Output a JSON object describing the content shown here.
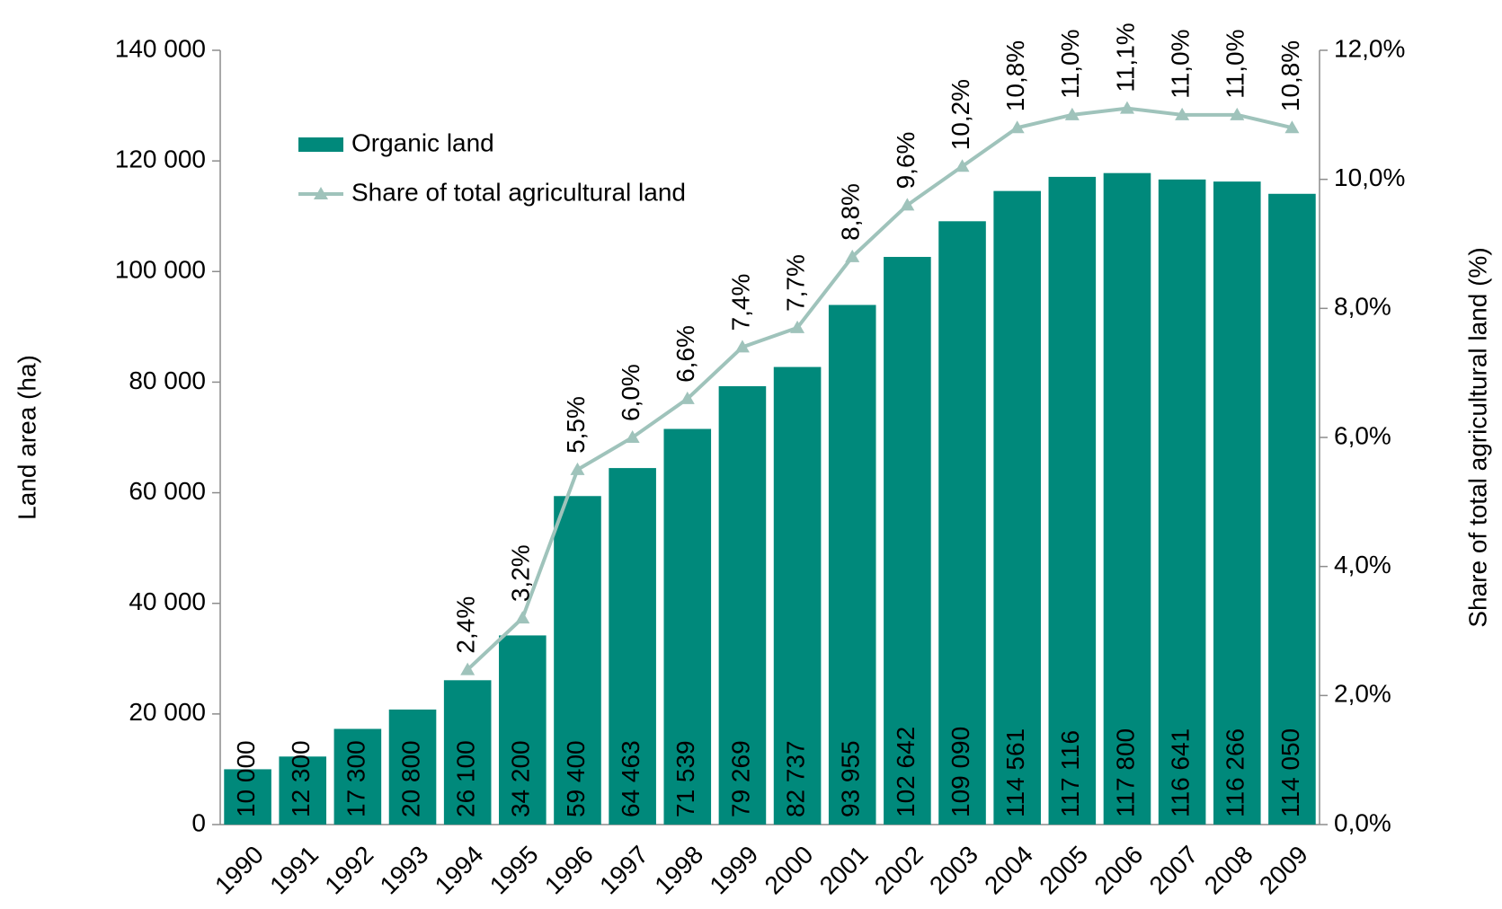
{
  "chart_data": {
    "type": "bar",
    "categories": [
      "1990",
      "1991",
      "1992",
      "1993",
      "1994",
      "1995",
      "1996",
      "1997",
      "1998",
      "1999",
      "2000",
      "2001",
      "2002",
      "2003",
      "2004",
      "2005",
      "2006",
      "2007",
      "2008",
      "2009"
    ],
    "series": [
      {
        "name": "Organic land",
        "type": "bar",
        "color": "#00897b",
        "values": [
          10000,
          12300,
          17300,
          20800,
          26100,
          34200,
          59400,
          64463,
          71539,
          79269,
          82737,
          93955,
          102642,
          109090,
          114561,
          117116,
          117800,
          116641,
          116266,
          114050
        ],
        "value_labels": [
          "10 000",
          "12 300",
          "17 300",
          "20 800",
          "26 100",
          "34 200",
          "59 400",
          "64 463",
          "71 539",
          "79 269",
          "82 737",
          "93 955",
          "102 642",
          "109 090",
          "114 561",
          "117 116",
          "117 800",
          "116 641",
          "116 266",
          "114 050"
        ]
      },
      {
        "name": "Share of total agricultural land",
        "type": "line",
        "axis": "y2",
        "color": "#9fc3bb",
        "values": [
          null,
          null,
          null,
          null,
          2.4,
          3.2,
          5.5,
          6.0,
          6.6,
          7.4,
          7.7,
          8.8,
          9.6,
          10.2,
          10.8,
          11.0,
          11.1,
          11.0,
          11.0,
          10.8
        ],
        "value_labels": [
          null,
          null,
          null,
          null,
          "2,4%",
          "3,2%",
          "5,5%",
          "6,0%",
          "6,6%",
          "7,4%",
          "7,7%",
          "8,8%",
          "9,6%",
          "10,2%",
          "10,8%",
          "11,0%",
          "11,1%",
          "11,0%",
          "11,0%",
          "10,8%"
        ]
      }
    ],
    "ylabel": "Land area (ha)",
    "y2label": "Share of total agricultural land (%)",
    "ylim": [
      0,
      140000
    ],
    "yticks": [
      0,
      {
        "value": 20000,
        "label": "20 000"
      },
      {
        "value": 40000,
        "label": "40 000"
      },
      {
        "value": 60000,
        "label": "60 000"
      },
      {
        "value": 80000,
        "label": "80 000"
      },
      {
        "value": 100000,
        "label": "100 000"
      },
      {
        "value": 120000,
        "label": "120 000"
      },
      {
        "value": 140000,
        "label": "140 000"
      }
    ],
    "y2lim": [
      0,
      12
    ],
    "y2ticks": [
      {
        "value": 0,
        "label": "0,0%"
      },
      {
        "value": 2,
        "label": "2,0%"
      },
      {
        "value": 4,
        "label": "4,0%"
      },
      {
        "value": 6,
        "label": "6,0%"
      },
      {
        "value": 8,
        "label": "8,0%"
      },
      {
        "value": 10,
        "label": "10,0%"
      },
      {
        "value": 12,
        "label": "12,0%"
      }
    ],
    "grid": false,
    "legend": "upper left"
  }
}
